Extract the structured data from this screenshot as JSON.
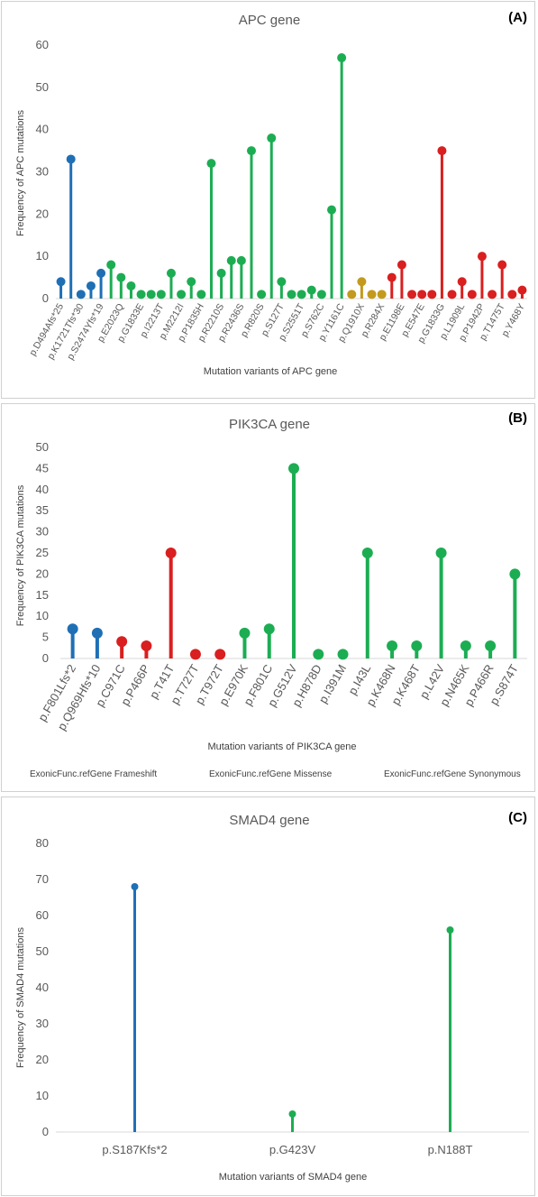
{
  "chart_data": [
    {
      "type": "lollipop",
      "panel_label": "(A)",
      "title": "APC gene",
      "xlabel": "Mutation variants of APC gene",
      "ylabel": "Frequency of APC mutations",
      "ylim": [
        0,
        60
      ],
      "yticks": [
        0,
        10,
        20,
        30,
        40,
        50,
        60
      ],
      "visible_tick_labels": [
        "p.D494Afs*25",
        "p.K1721Tfs*30",
        "p.S2474Yfs*19",
        "p.E2023Q",
        "p.G1833E",
        "p.I2213T",
        "p.M2212I",
        "p.P1835H",
        "p.R2210S",
        "p.R2436S",
        "p.R820S",
        "p.S127T",
        "p.S2551T",
        "p.S762C",
        "p.Y1161C",
        "p.Q1910X",
        "p.R284X",
        "p.E1198E",
        "p.E547E",
        "p.G1833G",
        "p.L1909L",
        "p.P1942P",
        "p.T1475T",
        "p.Y468Y"
      ],
      "colors": {
        "frameshift": "#1f6fb5",
        "missense": "#1cad53",
        "nonsense": "#c39a1d",
        "synonymous": "#d91f1f"
      },
      "values": [
        4,
        33,
        1,
        3,
        6,
        8,
        5,
        3,
        1,
        1,
        1,
        6,
        1,
        4,
        1,
        32,
        6,
        9,
        9,
        35,
        1,
        38,
        4,
        1,
        1,
        2,
        1,
        21,
        57,
        1,
        4,
        1,
        1,
        5,
        8,
        1,
        1,
        1,
        35,
        1,
        4,
        1,
        10,
        1,
        8,
        1,
        2
      ],
      "categories_color": [
        "frameshift",
        "frameshift",
        "frameshift",
        "frameshift",
        "frameshift",
        "missense",
        "missense",
        "missense",
        "missense",
        "missense",
        "missense",
        "missense",
        "missense",
        "missense",
        "missense",
        "missense",
        "missense",
        "missense",
        "missense",
        "missense",
        "missense",
        "missense",
        "missense",
        "missense",
        "missense",
        "missense",
        "missense",
        "missense",
        "missense",
        "nonsense",
        "nonsense",
        "nonsense",
        "nonsense",
        "synonymous",
        "synonymous",
        "synonymous",
        "synonymous",
        "synonymous",
        "synonymous",
        "synonymous",
        "synonymous",
        "synonymous",
        "synonymous",
        "synonymous",
        "synonymous",
        "synonymous",
        "synonymous"
      ]
    },
    {
      "type": "lollipop",
      "panel_label": "(B)",
      "title": "PIK3CA gene",
      "xlabel": "Mutation variants of PIK3CA gene",
      "ylabel": "Frequency of PIK3CA mutations",
      "ylim": [
        0,
        50
      ],
      "yticks": [
        0,
        5,
        10,
        15,
        20,
        25,
        30,
        35,
        40,
        45,
        50
      ],
      "categories": [
        "p.F801Lfs*2",
        "p.Q969Hfs*10",
        "p.C971C",
        "p.P466P",
        "p.T41T",
        "p.T727T",
        "p.T972T",
        "p.E970K",
        "p.F801C",
        "p.G512V",
        "p.H878D",
        "p.I391M",
        "p.I43L",
        "p.K468N",
        "p.K468T",
        "p.L42V",
        "p.N465K",
        "p.P466R",
        "p.S874T"
      ],
      "values": [
        7,
        6,
        4,
        3,
        25,
        1,
        1,
        6,
        7,
        45,
        1,
        1,
        25,
        3,
        3,
        25,
        3,
        3,
        20
      ],
      "groups": [
        "frameshift",
        "frameshift",
        "synonymous",
        "synonymous",
        "synonymous",
        "synonymous",
        "synonymous",
        "missense",
        "missense",
        "missense",
        "missense",
        "missense",
        "missense",
        "missense",
        "missense",
        "missense",
        "missense",
        "missense",
        "missense"
      ],
      "legend": [
        "ExonicFunc.refGene Frameshift",
        "ExonicFunc.refGene Missense",
        "ExonicFunc.refGene Synonymous"
      ],
      "colors": {
        "frameshift": "#1f6fb5",
        "missense": "#1cad53",
        "synonymous": "#d91f1f"
      }
    },
    {
      "type": "lollipop",
      "panel_label": "(C)",
      "title": "SMAD4 gene",
      "xlabel": "Mutation variants of SMAD4 gene",
      "ylabel": "Frequency of SMAD4 mutations",
      "ylim": [
        0,
        80
      ],
      "yticks": [
        0,
        10,
        20,
        30,
        40,
        50,
        60,
        70,
        80
      ],
      "categories": [
        "p.S187Kfs*2",
        "p.G423V",
        "p.N188T"
      ],
      "values": [
        68,
        5,
        56
      ],
      "groups": [
        "frameshift",
        "missense",
        "missense"
      ],
      "colors": {
        "frameshift": "#1f6fb5",
        "missense": "#1cad53"
      }
    }
  ]
}
